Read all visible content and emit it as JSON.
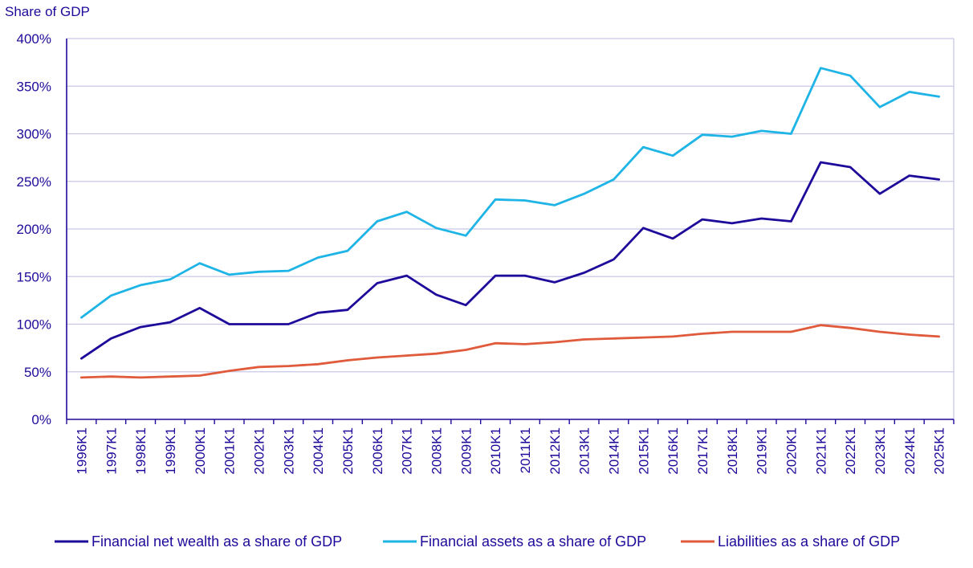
{
  "chart_data": {
    "type": "line",
    "title": "",
    "ylabel": "Share of GDP",
    "xlabel": "",
    "ylim": [
      0,
      400
    ],
    "yticks": [
      0,
      50,
      100,
      150,
      200,
      250,
      300,
      350,
      400
    ],
    "ytick_labels": [
      "0%",
      "50%",
      "100%",
      "150%",
      "200%",
      "250%",
      "300%",
      "350%",
      "400%"
    ],
    "grid": true,
    "legend_position": "bottom",
    "categories": [
      "1996K1",
      "1997K1",
      "1998K1",
      "1999K1",
      "2000K1",
      "2001K1",
      "2002K1",
      "2003K1",
      "2004K1",
      "2005K1",
      "2006K1",
      "2007K1",
      "2008K1",
      "2009K1",
      "2010K1",
      "2011K1",
      "2012K1",
      "2013K1",
      "2014K1",
      "2015K1",
      "2016K1",
      "2017K1",
      "2018K1",
      "2019K1",
      "2020K1",
      "2021K1",
      "2022K1",
      "2023K1",
      "2024K1",
      "2025K1"
    ],
    "series": [
      {
        "name": "Financial net wealth as a share of GDP",
        "color": "#1e0a9a",
        "values": [
          64,
          85,
          97,
          102,
          117,
          100,
          100,
          100,
          112,
          115,
          143,
          151,
          131,
          120,
          151,
          151,
          144,
          154,
          168,
          201,
          190,
          210,
          206,
          211,
          208,
          270,
          265,
          237,
          256,
          252
        ]
      },
      {
        "name": "Financial assets as a share of GDP",
        "color": "#1eb4e6",
        "values": [
          107,
          130,
          141,
          147,
          164,
          152,
          155,
          156,
          170,
          177,
          208,
          218,
          201,
          193,
          231,
          230,
          225,
          237,
          252,
          286,
          277,
          299,
          297,
          303,
          300,
          369,
          361,
          328,
          344,
          339
        ]
      },
      {
        "name": "Liabilities as a share of GDP",
        "color": "#e05a3c",
        "values": [
          44,
          45,
          44,
          45,
          46,
          51,
          55,
          56,
          58,
          62,
          65,
          67,
          69,
          73,
          80,
          79,
          81,
          84,
          85,
          86,
          87,
          90,
          92,
          92,
          92,
          99,
          96,
          92,
          89,
          87
        ]
      }
    ]
  },
  "colors": {
    "axis_text": "#1e0a9a",
    "grid": "#c8c8e6",
    "axis_line": "#1e0a9a"
  }
}
